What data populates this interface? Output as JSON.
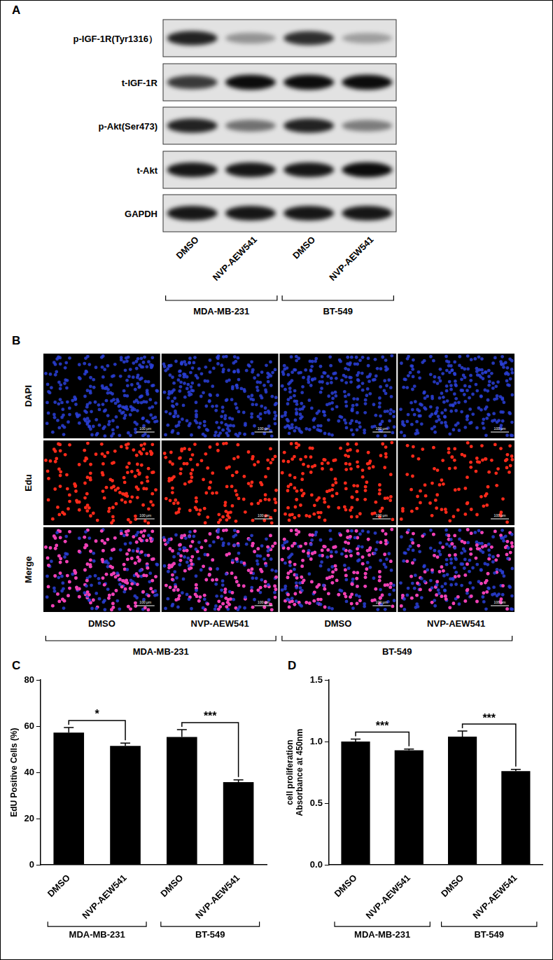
{
  "blot": {
    "panel": "A",
    "rows": [
      {
        "label": "p-IGF-1R(Tyr1316）",
        "intensity": [
          0.85,
          0.35,
          0.8,
          0.3
        ]
      },
      {
        "label": "t-IGF-1R",
        "intensity": [
          0.75,
          0.95,
          0.95,
          0.95
        ]
      },
      {
        "label": "p-Akt(Ser473)",
        "intensity": [
          0.85,
          0.5,
          0.85,
          0.45
        ]
      },
      {
        "label": "t-Akt",
        "intensity": [
          0.9,
          0.9,
          0.9,
          0.95
        ]
      },
      {
        "label": "GAPDH",
        "intensity": [
          0.9,
          0.9,
          0.9,
          0.9
        ]
      }
    ],
    "lanes": [
      "DMSO",
      "NVP-AEW541",
      "DMSO",
      "NVP-AEW541"
    ],
    "groups": [
      {
        "label": "MDA-MB-231",
        "from": 0,
        "to": 1
      },
      {
        "label": "BT-549",
        "from": 2,
        "to": 3
      }
    ]
  },
  "microscopy": {
    "panel": "B",
    "rows": [
      "DAPI",
      "Edu",
      "Merge"
    ],
    "columns": [
      "DMSO",
      "NVP-AEW541",
      "DMSO",
      "NVP-AEW541"
    ],
    "groups": [
      {
        "label": "MDA-MB-231",
        "from": 0,
        "to": 1
      },
      {
        "label": "BT-549",
        "from": 2,
        "to": 3
      }
    ],
    "scale_bar": "100 μm"
  },
  "chart_data": [
    {
      "panel": "C",
      "type": "bar",
      "categories": [
        "DMSO",
        "NVP-AEW541",
        "DMSO",
        "NVP-AEW541"
      ],
      "values": [
        57.2,
        51.5,
        55.3,
        35.8
      ],
      "errors": [
        2.2,
        1.2,
        3.2,
        1.0
      ],
      "color": "#000000",
      "ylabel": "EdU Positive Cells (%)",
      "ylim": [
        0,
        80
      ],
      "yticks": [
        0,
        20,
        40,
        60,
        80
      ],
      "grid": false,
      "groups": [
        {
          "label": "MDA-MB-231",
          "from": 0,
          "to": 1
        },
        {
          "label": "BT-549",
          "from": 2,
          "to": 3
        }
      ],
      "annotations": [
        {
          "text": "*",
          "from": 0,
          "to": 1
        },
        {
          "text": "***",
          "from": 2,
          "to": 3
        }
      ]
    },
    {
      "panel": "D",
      "type": "bar",
      "categories": [
        "DMSO",
        "NVP-AEW541",
        "DMSO",
        "NVP-AEW541"
      ],
      "values": [
        1.0,
        0.93,
        1.04,
        0.76
      ],
      "errors": [
        0.02,
        0.01,
        0.045,
        0.015
      ],
      "color": "#000000",
      "ylabel": [
        "cell proliferation",
        "Absorbance at 450nm"
      ],
      "ylim": [
        0,
        1.5
      ],
      "yticks": [
        {
          "value": 0,
          "label": "0.0"
        },
        {
          "value": 0.5,
          "label": "0.5"
        },
        {
          "value": 1,
          "label": "1.0"
        },
        {
          "value": 1.5,
          "label": "1.5"
        }
      ],
      "grid": false,
      "groups": [
        {
          "label": "MDA-MB-231",
          "from": 0,
          "to": 1
        },
        {
          "label": "BT-549",
          "from": 2,
          "to": 3
        }
      ],
      "annotations": [
        {
          "text": "***",
          "from": 0,
          "to": 1
        },
        {
          "text": "***",
          "from": 2,
          "to": 3
        }
      ]
    }
  ]
}
